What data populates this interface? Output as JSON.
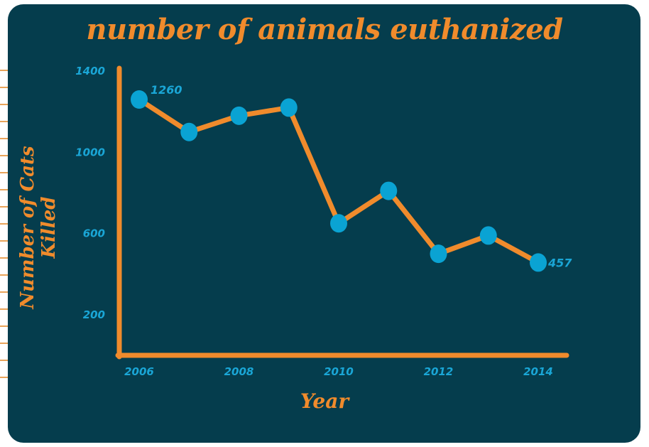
{
  "chart_data": {
    "type": "line",
    "title": "number of animals euthanized",
    "xlabel": "Year",
    "ylabel": "Number of Cats Killed",
    "x": [
      2006,
      2007,
      2008,
      2009,
      2010,
      2011,
      2012,
      2013,
      2014
    ],
    "x_tick_labels": [
      "2006",
      "2008",
      "2010",
      "2012",
      "2014"
    ],
    "y_tick_labels": [
      "200",
      "600",
      "1000",
      "1400"
    ],
    "series": [
      {
        "values": [
          1260,
          1100,
          1180,
          1220,
          650,
          810,
          500,
          590,
          457
        ]
      }
    ],
    "data_labels": [
      {
        "index": 0,
        "text": "1260"
      },
      {
        "index": 8,
        "text": "457"
      }
    ],
    "xlim": [
      2006,
      2014
    ],
    "ylim": [
      0,
      1400
    ],
    "grid": false,
    "colors": {
      "line": "#f08b2c",
      "marker": "#0aa3d3",
      "axis": "#f08b2c",
      "background": "#053d4d"
    }
  }
}
